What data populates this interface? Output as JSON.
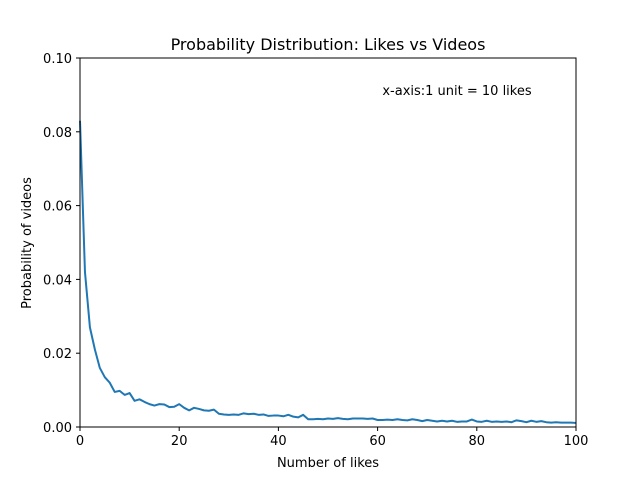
{
  "chart_data": {
    "type": "line",
    "title": "Probability Distribution: Likes vs Videos",
    "xlabel": "Number of likes",
    "ylabel": "Probability of videos",
    "annotation": "x-axis:1 unit = 10 likes",
    "xlim": [
      0,
      100
    ],
    "ylim": [
      0,
      0.1
    ],
    "x_ticks": [
      0,
      20,
      40,
      60,
      80,
      100
    ],
    "x_tick_labels": [
      "0",
      "20",
      "40",
      "60",
      "80",
      "100"
    ],
    "y_ticks": [
      0,
      0.02,
      0.04,
      0.06,
      0.08,
      0.1
    ],
    "y_tick_labels": [
      "0.00",
      "0.02",
      "0.04",
      "0.06",
      "0.08",
      "0.10"
    ],
    "grid": false,
    "line_color": "#1f77b4",
    "series": [
      {
        "x": [
          0,
          1,
          2,
          3,
          4,
          5,
          6,
          7,
          8,
          9,
          10,
          11,
          12,
          13,
          14,
          15,
          16,
          17,
          18,
          19,
          20,
          21,
          22,
          23,
          24,
          25,
          26,
          27,
          28,
          29,
          30,
          31,
          32,
          33,
          34,
          35,
          36,
          37,
          38,
          39,
          40,
          41,
          42,
          43,
          44,
          45,
          46,
          47,
          48,
          49,
          50,
          51,
          52,
          53,
          54,
          55,
          56,
          57,
          58,
          59,
          60,
          61,
          62,
          63,
          64,
          65,
          66,
          67,
          68,
          69,
          70,
          71,
          72,
          73,
          74,
          75,
          76,
          77,
          78,
          79,
          80,
          81,
          82,
          83,
          84,
          85,
          86,
          87,
          88,
          89,
          90,
          91,
          92,
          93,
          94,
          95,
          96,
          97,
          98,
          99,
          100
        ],
        "y": [
          0.083,
          0.042,
          0.027,
          0.021,
          0.016,
          0.0135,
          0.012,
          0.0095,
          0.0098,
          0.0087,
          0.0092,
          0.0071,
          0.0075,
          0.0068,
          0.0062,
          0.0058,
          0.0062,
          0.0061,
          0.0054,
          0.0055,
          0.0062,
          0.0052,
          0.0045,
          0.0052,
          0.0049,
          0.0045,
          0.0044,
          0.0047,
          0.0036,
          0.0034,
          0.0033,
          0.0034,
          0.0033,
          0.0037,
          0.0035,
          0.0036,
          0.0033,
          0.0034,
          0.003,
          0.0031,
          0.0031,
          0.0029,
          0.0033,
          0.0028,
          0.0026,
          0.0033,
          0.0021,
          0.0021,
          0.0022,
          0.0021,
          0.0023,
          0.0022,
          0.0024,
          0.0022,
          0.0021,
          0.0023,
          0.0023,
          0.0023,
          0.0022,
          0.0023,
          0.0019,
          0.0019,
          0.002,
          0.0019,
          0.0021,
          0.0019,
          0.0018,
          0.0021,
          0.0019,
          0.0016,
          0.0019,
          0.0017,
          0.0015,
          0.0017,
          0.0015,
          0.0017,
          0.0014,
          0.0015,
          0.0015,
          0.002,
          0.0015,
          0.0014,
          0.0017,
          0.0014,
          0.0015,
          0.0014,
          0.0015,
          0.0013,
          0.0018,
          0.0016,
          0.0013,
          0.0017,
          0.0014,
          0.0016,
          0.0013,
          0.0012,
          0.0013,
          0.0012,
          0.0012,
          0.0012,
          0.0011
        ]
      }
    ]
  }
}
